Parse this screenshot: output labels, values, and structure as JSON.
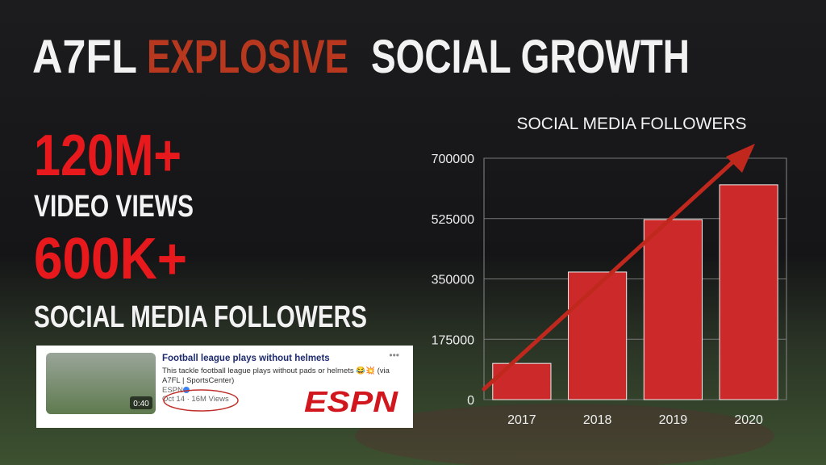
{
  "slide": {
    "title": [
      "A7FL",
      "EXPLOSIVE",
      "SOCIAL GROWTH"
    ],
    "stats": [
      {
        "number": "120M+",
        "label": "VIDEO VIEWS"
      },
      {
        "number": "600K+",
        "label": "SOCIAL MEDIA FOLLOWERS"
      }
    ],
    "video_card": {
      "title": "Football league plays without helmets",
      "description": [
        "This tackle football league plays without pads or helmets 😂💥 (via",
        "A7FL | SportsCenter)"
      ],
      "source": "ESPN",
      "meta": "Oct 14 · 16M Views",
      "duration": "0:40",
      "logo": "ESPN"
    }
  },
  "chart_data": {
    "type": "bar",
    "title": "SOCIAL MEDIA FOLLOWERS",
    "categories": [
      "2017",
      "2018",
      "2019",
      "2020"
    ],
    "values": [
      105000,
      370000,
      522000,
      623000
    ],
    "color": "#cc2a2a",
    "ylim": [
      0,
      700000
    ],
    "yticks": [
      0,
      175000,
      350000,
      525000,
      700000
    ],
    "grid": true
  }
}
